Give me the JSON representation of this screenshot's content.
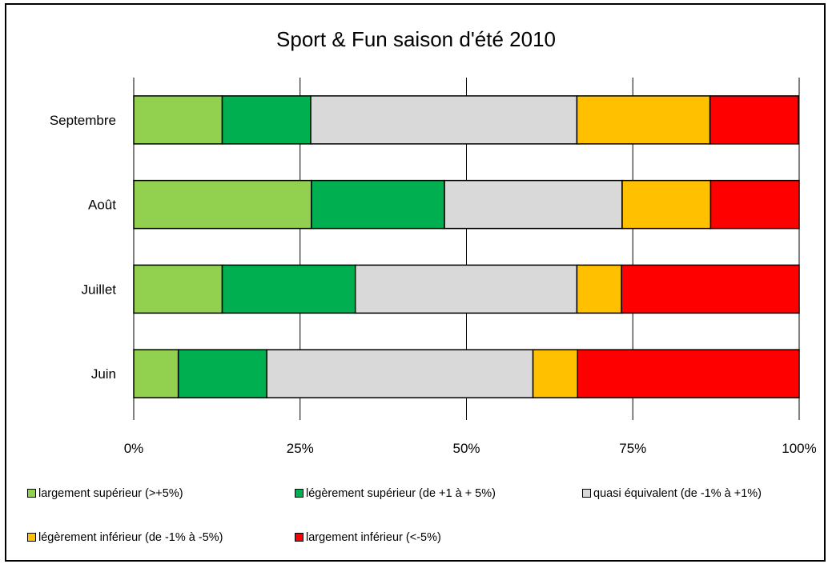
{
  "chart_data": {
    "type": "bar",
    "orientation": "horizontal",
    "stacked": "percent",
    "title": "Sport & Fun saison d'été 2010",
    "categories": [
      "Septembre",
      "Août",
      "Juillet",
      "Juin"
    ],
    "series": [
      {
        "name": "largement supérieur (>+5%)",
        "color": "#92d050",
        "values": [
          13.3,
          26.7,
          13.3,
          6.7
        ]
      },
      {
        "name": "légèrement supérieur (de +1 à + 5%)",
        "color": "#00b050",
        "values": [
          13.3,
          20.0,
          20.0,
          13.3
        ]
      },
      {
        "name": "quasi équivalent (de -1% à +1%)",
        "color": "#d9d9d9",
        "values": [
          40.0,
          26.7,
          33.3,
          40.0
        ]
      },
      {
        "name": "légèrement inférieur (de -1% à -5%)",
        "color": "#ffc000",
        "values": [
          20.0,
          13.3,
          6.7,
          6.7
        ]
      },
      {
        "name": "largement inférieur (<-5%)",
        "color": "#ff0000",
        "values": [
          13.3,
          13.3,
          26.7,
          33.3
        ]
      }
    ],
    "xlim": [
      0,
      100
    ],
    "x_ticks": [
      "0%",
      "25%",
      "50%",
      "75%",
      "100%"
    ],
    "grid": "vertical",
    "legend_position": "bottom"
  }
}
